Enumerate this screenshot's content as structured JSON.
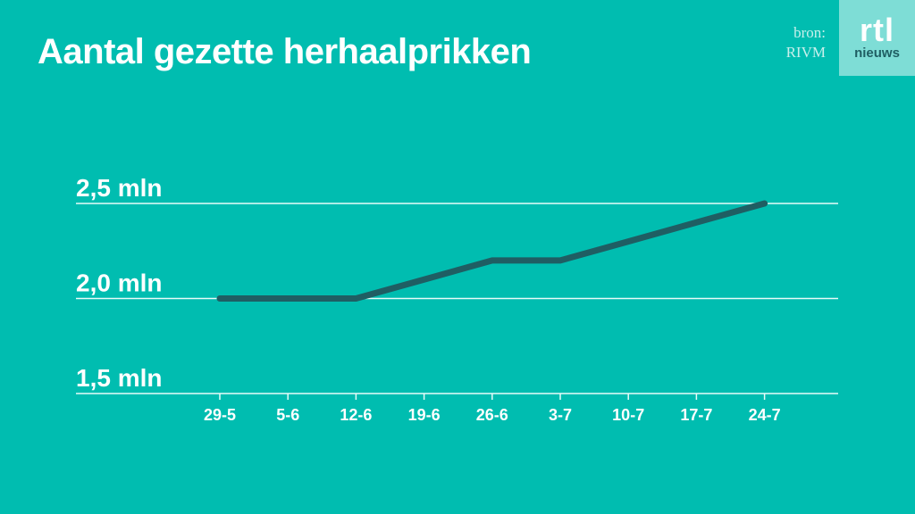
{
  "title": "Aantal gezette herhaalprikken",
  "source": {
    "line1": "bron:",
    "line2": "RIVM"
  },
  "logo": {
    "brand": "rtl",
    "sub": "nieuws"
  },
  "colors": {
    "background": "#00BDB0",
    "line": "#1F5E63",
    "gridline": "#E8FBF9",
    "logo_bg": "#7EDDD6"
  },
  "chart_data": {
    "type": "line",
    "title": "Aantal gezette herhaalprikken",
    "categories": [
      "29-5",
      "5-6",
      "12-6",
      "19-6",
      "26-6",
      "3-7",
      "10-7",
      "17-7",
      "24-7"
    ],
    "series": [
      {
        "values": [
          2.0,
          2.0,
          2.0,
          2.1,
          2.2,
          2.2,
          2.3,
          2.4,
          2.5
        ]
      }
    ],
    "yticks": [
      1.5,
      2.0,
      2.5
    ],
    "ytick_labels": [
      "1,5 mln",
      "2,0 mln",
      "2,5 mln"
    ],
    "ylim": [
      1.5,
      2.5
    ],
    "xlabel": "",
    "ylabel": "",
    "grid": true
  }
}
